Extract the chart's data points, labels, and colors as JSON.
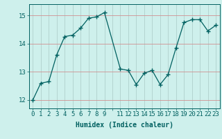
{
  "x": [
    0,
    1,
    2,
    3,
    4,
    5,
    6,
    7,
    8,
    9,
    11,
    12,
    13,
    14,
    15,
    16,
    17,
    18,
    19,
    20,
    21,
    22,
    23
  ],
  "y": [
    12.0,
    12.6,
    12.65,
    13.6,
    14.25,
    14.3,
    14.55,
    14.9,
    14.95,
    15.1,
    13.1,
    13.05,
    12.55,
    12.95,
    13.05,
    12.55,
    12.9,
    13.85,
    14.75,
    14.85,
    14.85,
    14.45,
    14.65
  ],
  "line_color": "#006060",
  "marker": "+",
  "marker_size": 4,
  "bg_color": "#cef0ec",
  "xlabel": "Humidex (Indice chaleur)",
  "xlim": [
    -0.5,
    23.5
  ],
  "ylim": [
    11.7,
    15.4
  ],
  "yticks": [
    12,
    13,
    14,
    15
  ],
  "font_size": 6.5
}
